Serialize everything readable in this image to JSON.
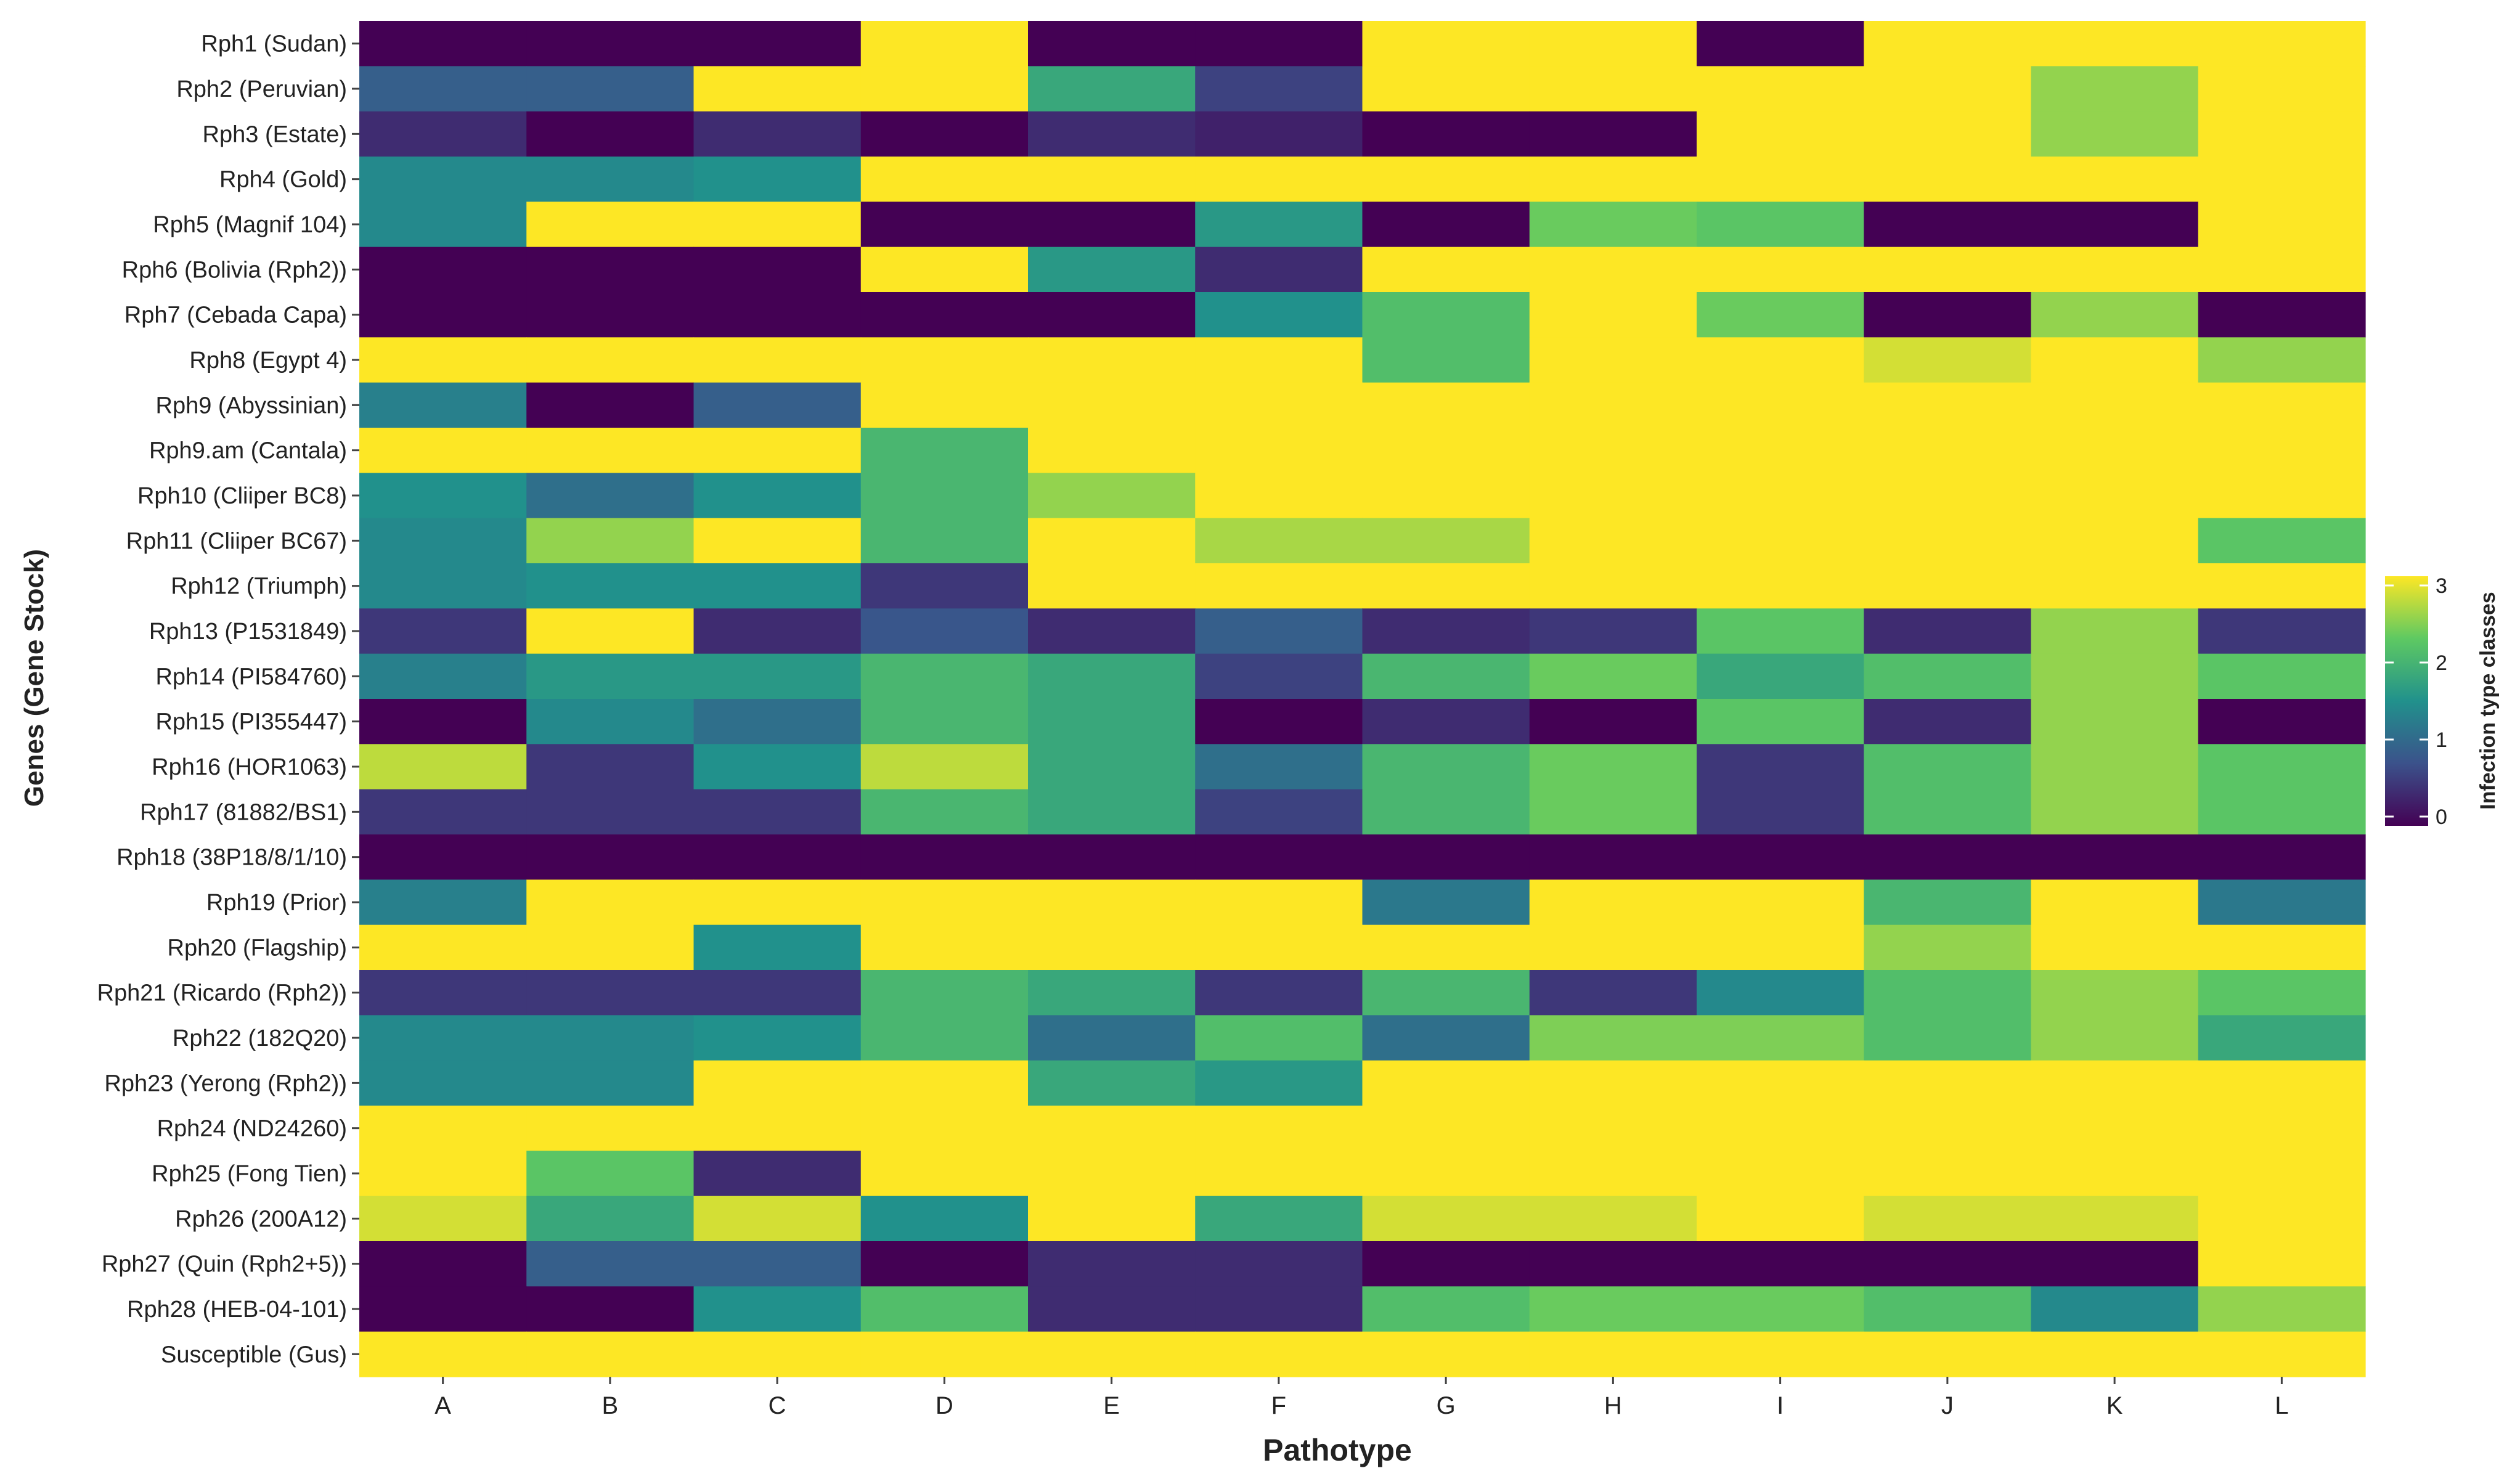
{
  "chart_data": {
    "type": "heatmap",
    "xlabel": "Pathotype",
    "ylabel": "Genes (Gene Stock)",
    "colorbar_label": "Infection type classes",
    "colorbar_range": [
      0,
      3
    ],
    "colorbar_ticks": [
      "0",
      "1",
      "2",
      "3"
    ],
    "palette": [
      "#440154",
      "#3b528b",
      "#21918c",
      "#5ec962",
      "#fde725"
    ],
    "columns": [
      "A",
      "B",
      "C",
      "D",
      "E",
      "F",
      "G",
      "H",
      "I",
      "J",
      "K",
      "L"
    ],
    "rows": [
      "Rph1 (Sudan)",
      "Rph2 (Peruvian)",
      "Rph3 (Estate)",
      "Rph4 (Gold)",
      "Rph5 (Magnif 104)",
      "Rph6 (Bolivia (Rph2))",
      "Rph7 (Cebada Capa)",
      "Rph8 (Egypt 4)",
      "Rph9 (Abyssinian)",
      "Rph9.am (Cantala)",
      "Rph10 (Cliiper BC8)",
      "Rph11 (Cliiper BC67)",
      "Rph12 (Triumph)",
      "Rph13 (P1531849)",
      "Rph14 (PI584760)",
      "Rph15 (PI355447)",
      "Rph16 (HOR1063)",
      "Rph17 (81882/BS1)",
      "Rph18 (38P18/8/1/10)",
      "Rph19 (Prior)",
      "Rph20 (Flagship)",
      "Rph21 (Ricardo (Rph2))",
      "Rph22 (182Q20)",
      "Rph23 (Yerong (Rph2))",
      "Rph24 (ND24260)",
      "Rph25 (Fong Tien)",
      "Rph26 (200A12)",
      "Rph27 (Quin (Rph2+5))",
      "Rph28 (HEB-04-101)",
      "Susceptible (Gus)"
    ],
    "values": [
      [
        0,
        0,
        0,
        3,
        0,
        0,
        3,
        3,
        0,
        3,
        3,
        3
      ],
      [
        0.9,
        0.9,
        3,
        3,
        1.8,
        0.6,
        3,
        3,
        3,
        3,
        2.5,
        3
      ],
      [
        0.4,
        0,
        0.4,
        0,
        0.4,
        0.3,
        0,
        0,
        3,
        3,
        2.5,
        3
      ],
      [
        1.4,
        1.4,
        1.5,
        3,
        3,
        3,
        3,
        3,
        3,
        3,
        3,
        3
      ],
      [
        1.4,
        3,
        3,
        0,
        0,
        1.6,
        0,
        2.3,
        2.2,
        0,
        0,
        3
      ],
      [
        0,
        0,
        0,
        3,
        1.6,
        0.4,
        3,
        3,
        3,
        3,
        3,
        3
      ],
      [
        0,
        0,
        0,
        0,
        0,
        1.5,
        2.1,
        3,
        2.3,
        0,
        2.5,
        0
      ],
      [
        3,
        3,
        3,
        3,
        3,
        3,
        2.1,
        3,
        3,
        2.8,
        3,
        2.5
      ],
      [
        1.3,
        0,
        0.9,
        3,
        3,
        3,
        3,
        3,
        3,
        3,
        3,
        3
      ],
      [
        3,
        3,
        3,
        2,
        3,
        3,
        3,
        3,
        3,
        3,
        3,
        3
      ],
      [
        1.5,
        1.1,
        1.5,
        2,
        2.5,
        3,
        3,
        3,
        3,
        3,
        3,
        3
      ],
      [
        1.4,
        2.5,
        3,
        2,
        3,
        2.6,
        2.6,
        3,
        3,
        3,
        3,
        2.2
      ],
      [
        1.4,
        1.5,
        1.5,
        0.5,
        3,
        3,
        3,
        3,
        3,
        3,
        3,
        3
      ],
      [
        0.5,
        3,
        0.4,
        0.8,
        0.4,
        0.9,
        0.4,
        0.5,
        2.2,
        0.4,
        2.5,
        0.5
      ],
      [
        1.3,
        1.6,
        1.6,
        2,
        1.8,
        0.6,
        2,
        2.3,
        1.8,
        2.1,
        2.5,
        2.2
      ],
      [
        0,
        1.4,
        1.1,
        2,
        1.8,
        0,
        0.4,
        0,
        2.2,
        0.4,
        2.5,
        0
      ],
      [
        2.7,
        0.5,
        1.5,
        2.7,
        1.8,
        1.1,
        2,
        2.3,
        0.5,
        2.1,
        2.5,
        2.2
      ],
      [
        0.5,
        0.5,
        0.5,
        2,
        1.8,
        0.6,
        2,
        2.3,
        0.5,
        2.1,
        2.5,
        2.2
      ],
      [
        0,
        0,
        0,
        0,
        0,
        0,
        0,
        0,
        0,
        0,
        0,
        0
      ],
      [
        1.3,
        3,
        3,
        3,
        3,
        3,
        1.2,
        3,
        3,
        2,
        3,
        1.2
      ],
      [
        3,
        3,
        1.5,
        3,
        3,
        3,
        3,
        3,
        3,
        2.5,
        3,
        3
      ],
      [
        0.5,
        0.5,
        0.5,
        2,
        1.8,
        0.5,
        2,
        0.5,
        1.4,
        2.1,
        2.5,
        2.2
      ],
      [
        1.4,
        1.4,
        1.5,
        2,
        1.1,
        2.1,
        1.1,
        2.4,
        2.4,
        2.1,
        2.5,
        1.8
      ],
      [
        1.4,
        1.4,
        3,
        3,
        1.8,
        1.6,
        3,
        3,
        3,
        3,
        3,
        3
      ],
      [
        3,
        3,
        3,
        3,
        3,
        3,
        3,
        3,
        3,
        3,
        3,
        3
      ],
      [
        3,
        2.2,
        0.4,
        3,
        3,
        3,
        3,
        3,
        3,
        3,
        3,
        3
      ],
      [
        2.8,
        1.8,
        2.8,
        1.5,
        3,
        1.8,
        2.8,
        2.8,
        3,
        2.8,
        2.8,
        3
      ],
      [
        0,
        0.9,
        0.9,
        0,
        0.4,
        0.4,
        0,
        0,
        0,
        0,
        0,
        3
      ],
      [
        0,
        0,
        1.5,
        2.1,
        0.4,
        0.4,
        2.1,
        2.3,
        2.3,
        2.1,
        1.4,
        2.5
      ],
      [
        3,
        3,
        3,
        3,
        3,
        3,
        3,
        3,
        3,
        3,
        3,
        3
      ]
    ]
  }
}
